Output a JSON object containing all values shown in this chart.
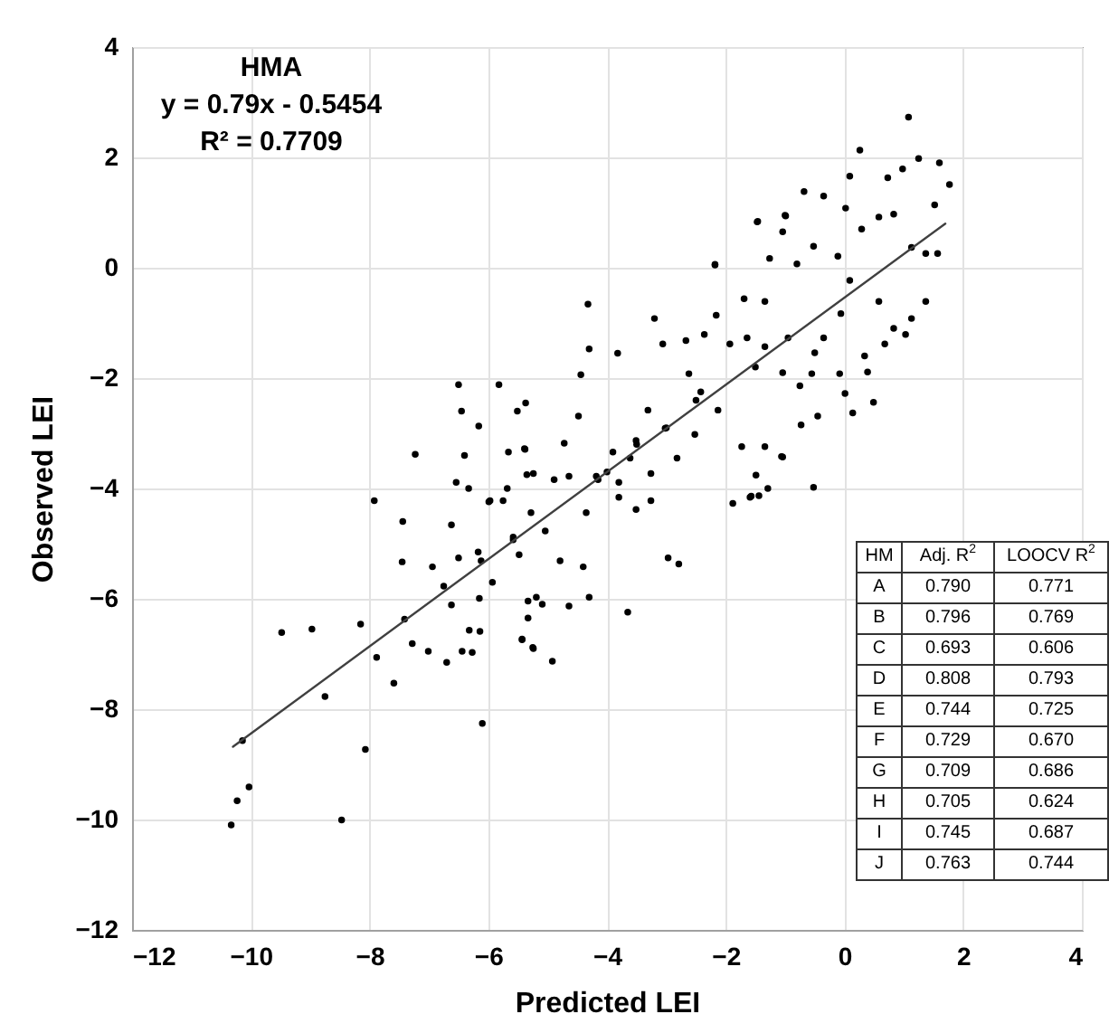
{
  "chart_data": {
    "type": "scatter",
    "xlabel": "Predicted LEI",
    "ylabel": "Observed LEI",
    "xlim": [
      -12,
      4
    ],
    "ylim": [
      -12,
      4
    ],
    "xticks": [
      -12,
      -10,
      -8,
      -6,
      -4,
      -2,
      0,
      2,
      4
    ],
    "yticks": [
      -12,
      -10,
      -8,
      -6,
      -4,
      -2,
      0,
      2,
      4
    ],
    "grid": true,
    "annotations": [
      "HMA",
      "y = 0.79x - 0.5454",
      "R² = 0.7709",
      "HM",
      "Adj. R$^{2}$",
      "LOOCV R$^{2}$",
      "A",
      "0.790",
      "0.771",
      "B",
      "0.796",
      "0.769",
      "C",
      "0.693",
      "0.606",
      "D",
      "0.808",
      "0.793",
      "E",
      "0.744",
      "0.725",
      "F",
      "0.729",
      "0.670",
      "G",
      "0.709",
      "0.686",
      "H",
      "0.705",
      "0.624",
      "I",
      "0.745",
      "0.687",
      "J",
      "0.763",
      "0.744"
    ],
    "series": [
      {
        "marker": "circle",
        "color": "#000000",
        "x": [
          -10.33,
          -10.23,
          -10.03,
          -10.14,
          -8.47,
          -8.07,
          -8.75,
          -9.48,
          -8.97,
          -8.15,
          -7.88,
          -7.59,
          -7.92,
          -6.1,
          -7.23,
          -6.5,
          -5.82,
          -7.44,
          -7.45,
          -7.41,
          -6.94,
          -6.75,
          -6.62,
          -6.62,
          -6.7,
          -6.44,
          -6.27,
          -6.14,
          -6.15,
          -6.5,
          -6.17,
          -6.45,
          -6.16,
          -6.4,
          -6.54,
          -6.33,
          -5.93,
          -7.28,
          -7.01,
          -5.37,
          -5.51,
          -5.66,
          -5.39,
          -5.35,
          -5.99,
          -5.75,
          -5.58,
          -5.33,
          -5.43,
          -5.25,
          -5.09,
          -4.32,
          -4.3,
          -3.82,
          -3.2,
          -2.18,
          -4.44,
          -4.48,
          -4.72,
          -4.89,
          -4.64,
          -4.15,
          -3.8,
          -3.51,
          -3.31,
          -3.06,
          -2.67,
          -2.36,
          -1.93,
          -2.16,
          -2.62,
          -2.42,
          -2.13,
          -2.52,
          -3.02,
          -2.82,
          -3.26,
          -3.61,
          -3.9,
          -4.18,
          -4.35,
          -3.8,
          -3.51,
          -3.26,
          -2.97,
          -2.79,
          -3.65,
          -1.44,
          -1.88,
          -1.57,
          -1.04,
          -1.47,
          -1.0,
          -5.24,
          -5.38,
          -5.97,
          -5.68,
          -5.28,
          -5.04,
          -4.79,
          -4.4,
          -4.3,
          -4.64,
          -5.19,
          -5.33,
          -5.24,
          -4.92,
          -5.43,
          -5.48,
          -5.58,
          -6.12,
          -6.32,
          1.08,
          0.26,
          1.25,
          1.6,
          1.77,
          1.52,
          0.98,
          0.73,
          0.09,
          0.02,
          -0.68,
          -0.35,
          -1.46,
          -1.04,
          -0.99,
          -2.18,
          -1.26,
          -0.8,
          -0.52,
          -0.11,
          0.29,
          0.58,
          0.83,
          1.13,
          1.37,
          1.57,
          1.37,
          1.13,
          1.03,
          0.68,
          0.83,
          0.58,
          0.34,
          0.39,
          0.49,
          0.14,
          0.01,
          -0.08,
          0.09,
          -0.5,
          -0.75,
          -0.45,
          -0.73,
          -1.06,
          -0.52,
          -1.29,
          -1.59,
          -1.49,
          -1.34,
          -1.73,
          -1.04,
          -1.34,
          -1.64,
          -0.55,
          -0.35,
          -0.95,
          -1.34,
          -1.69,
          -0.06,
          -3.0,
          -2.5,
          -1.5,
          -4.0,
          -3.5
        ],
        "values": [
          -10.1,
          -9.66,
          -9.41,
          -8.57,
          -10.01,
          -8.73,
          -7.77,
          -6.61,
          -6.55,
          -6.46,
          -7.06,
          -7.53,
          -4.22,
          -8.26,
          -3.38,
          -2.12,
          -2.12,
          -4.6,
          -5.33,
          -6.37,
          -5.42,
          -5.77,
          -4.66,
          -6.11,
          -7.15,
          -6.95,
          -6.97,
          -6.59,
          -5.99,
          -5.26,
          -5.15,
          -2.6,
          -2.87,
          -3.4,
          -3.89,
          -4.0,
          -5.7,
          -6.81,
          -6.95,
          -2.45,
          -2.6,
          -3.34,
          -3.28,
          -3.75,
          -4.24,
          -4.22,
          -4.93,
          -6.04,
          -6.74,
          -6.88,
          -6.1,
          -0.66,
          -1.47,
          -1.55,
          -0.92,
          0.06,
          -1.94,
          -2.69,
          -3.18,
          -3.84,
          -3.78,
          -3.84,
          -3.89,
          -3.13,
          -2.58,
          -1.38,
          -1.32,
          -1.21,
          -1.38,
          -0.86,
          -1.92,
          -2.25,
          -2.58,
          -3.02,
          -2.91,
          -3.45,
          -3.73,
          -3.45,
          -3.34,
          -3.78,
          -4.44,
          -4.16,
          -4.38,
          -4.22,
          -5.26,
          -5.37,
          -6.24,
          -4.13,
          -4.27,
          -4.14,
          -3.43,
          0.83,
          0.95,
          -3.73,
          -3.29,
          -4.22,
          -4.0,
          -4.44,
          -4.77,
          -5.31,
          -5.42,
          -5.97,
          -6.13,
          -5.97,
          -6.35,
          -6.9,
          -7.13,
          -6.73,
          -5.2,
          -4.88,
          -5.31,
          -6.57,
          2.73,
          2.13,
          1.98,
          1.9,
          1.51,
          1.14,
          1.79,
          1.63,
          1.66,
          1.08,
          1.38,
          1.3,
          0.84,
          0.65,
          0.94,
          0.05,
          0.17,
          0.07,
          0.39,
          0.21,
          0.7,
          0.92,
          0.97,
          0.37,
          0.26,
          0.26,
          -0.61,
          -0.92,
          -1.21,
          -1.38,
          -1.1,
          -0.61,
          -1.6,
          -1.89,
          -2.44,
          -2.63,
          -2.28,
          -1.92,
          -0.23,
          -1.54,
          -2.14,
          -2.69,
          -2.85,
          -3.42,
          -3.98,
          -4.0,
          -4.16,
          -3.76,
          -3.24,
          -3.24,
          -1.9,
          -1.43,
          -1.27,
          -1.92,
          -1.27,
          -1.27,
          -0.61,
          -0.56,
          -0.83,
          -2.9,
          -2.4,
          -1.8,
          -3.7,
          -3.2
        ]
      },
      {
        "type": "line",
        "color": "#404040",
        "x": [
          -10.3,
          1.7
        ],
        "values": [
          -8.68,
          0.8
        ]
      }
    ]
  }
}
